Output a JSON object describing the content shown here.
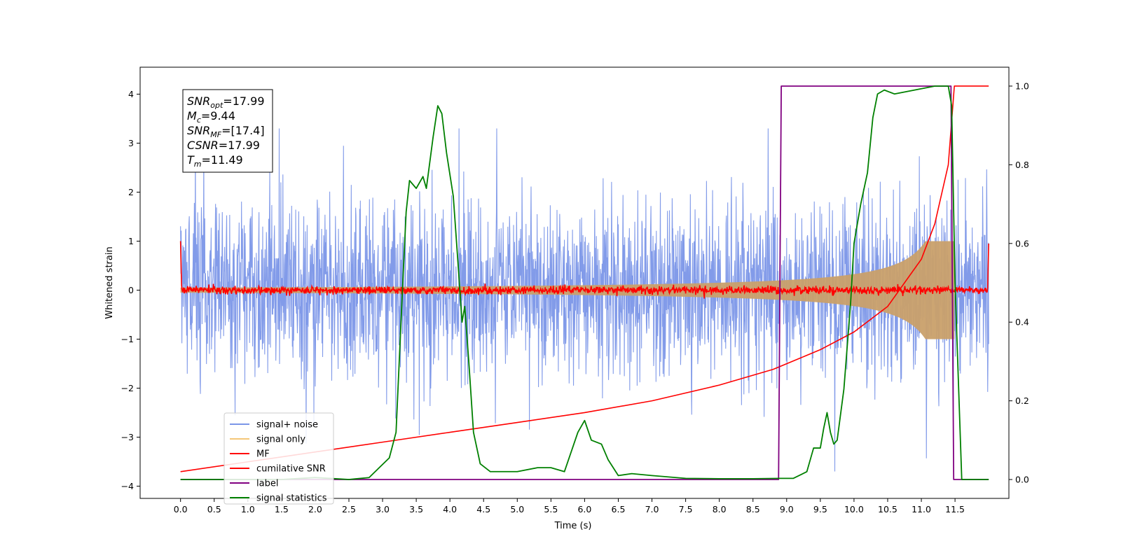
{
  "chart_data": {
    "type": "line",
    "title": "",
    "xlabel": "Time (s)",
    "ylabel": "Whitened strain",
    "xlim": [
      -0.6,
      12.3
    ],
    "ylim": [
      -4.25,
      4.55
    ],
    "y2lim": [
      -0.048,
      1.048
    ],
    "x_ticks": [
      "0.0",
      "0.5",
      "1.0",
      "1.5",
      "2.0",
      "2.5",
      "3.0",
      "3.5",
      "4.0",
      "4.5",
      "5.0",
      "5.5",
      "6.0",
      "6.5",
      "7.0",
      "7.5",
      "8.0",
      "8.5",
      "9.0",
      "9.5",
      "10.0",
      "10.5",
      "11.0",
      "11.5"
    ],
    "y_ticks": [
      "4",
      "3",
      "2",
      "1",
      "0",
      "−1",
      "−2",
      "−3",
      "−4"
    ],
    "y2_ticks": [
      "1.0",
      "0.8",
      "0.6",
      "0.4",
      "0.2",
      "0.0"
    ],
    "grid": false,
    "legend_position": "lower-left",
    "legend": [
      {
        "label": "signal+ noise",
        "color": "#7b96e8"
      },
      {
        "label": "signal only",
        "color": "#f5c778"
      },
      {
        "label": "MF",
        "color": "#ff0000"
      },
      {
        "label": "cumilative SNR",
        "color": "#ff0000"
      },
      {
        "label": "label",
        "color": "#800080"
      },
      {
        "label": "signal statistics",
        "color": "#008000"
      }
    ],
    "annotation": {
      "lines": [
        {
          "base": "SNR",
          "sub": "opt",
          "value": "=17.99"
        },
        {
          "base": "M",
          "sub": "c",
          "value": "=9.44"
        },
        {
          "base": "SNR",
          "sub": "MF",
          "value": "=[17.4]"
        },
        {
          "base": "CSNR",
          "sub": "",
          "value": "=17.99"
        },
        {
          "base": "T",
          "sub": "m",
          "value": "=11.49"
        }
      ]
    },
    "series": [
      {
        "name": "signal+ noise",
        "axis": "left",
        "t_range": [
          0.0,
          12.0
        ],
        "amplitude_range": [
          -3.7,
          3.3
        ],
        "color": "#7b96e8"
      },
      {
        "name": "signal only",
        "axis": "left",
        "t_range": [
          0.0,
          11.49
        ],
        "peak_amplitude": 1.0,
        "color": "#f5c778"
      },
      {
        "name": "MF",
        "axis": "left",
        "t_range": [
          0.0,
          12.0
        ],
        "color": "#ff0000"
      },
      {
        "name": "cumilative SNR",
        "axis": "right",
        "color": "#ff0000",
        "x": [
          0.0,
          1.0,
          2.0,
          3.0,
          4.0,
          5.0,
          6.0,
          7.0,
          8.0,
          8.8,
          9.5,
          10.0,
          10.5,
          11.0,
          11.2,
          11.4,
          11.49,
          12.0
        ],
        "y": [
          0.02,
          0.045,
          0.07,
          0.095,
          0.12,
          0.145,
          0.17,
          0.2,
          0.24,
          0.28,
          0.33,
          0.375,
          0.44,
          0.56,
          0.65,
          0.8,
          1.0,
          1.0
        ]
      },
      {
        "name": "label",
        "axis": "right",
        "color": "#800080",
        "x": [
          0.0,
          8.88,
          8.92,
          11.44,
          11.48,
          12.0
        ],
        "y": [
          0.0,
          0.0,
          1.0,
          1.0,
          0.0,
          0.0
        ]
      },
      {
        "name": "signal statistics",
        "axis": "right",
        "color": "#008000",
        "x": [
          0.0,
          0.5,
          1.0,
          1.5,
          2.0,
          2.5,
          2.8,
          2.95,
          3.1,
          3.2,
          3.3,
          3.35,
          3.4,
          3.5,
          3.6,
          3.65,
          3.75,
          3.82,
          3.88,
          3.95,
          4.05,
          4.12,
          4.18,
          4.22,
          4.28,
          4.35,
          4.45,
          4.6,
          5.0,
          5.3,
          5.5,
          5.7,
          5.9,
          6.0,
          6.1,
          6.25,
          6.35,
          6.5,
          6.7,
          7.0,
          7.5,
          8.0,
          8.5,
          8.9,
          9.1,
          9.3,
          9.4,
          9.5,
          9.55,
          9.6,
          9.65,
          9.7,
          9.75,
          9.85,
          9.95,
          10.0,
          10.1,
          10.2,
          10.28,
          10.35,
          10.45,
          10.6,
          10.9,
          11.2,
          11.4,
          11.45,
          11.5,
          11.6,
          11.7,
          12.0
        ],
        "y": [
          0.0,
          0.0,
          0.0,
          0.0,
          0.005,
          0.0,
          0.005,
          0.03,
          0.055,
          0.12,
          0.5,
          0.68,
          0.76,
          0.74,
          0.77,
          0.74,
          0.87,
          0.95,
          0.93,
          0.83,
          0.72,
          0.55,
          0.4,
          0.44,
          0.3,
          0.12,
          0.04,
          0.02,
          0.02,
          0.03,
          0.03,
          0.02,
          0.12,
          0.15,
          0.1,
          0.09,
          0.05,
          0.01,
          0.015,
          0.01,
          0.003,
          0.002,
          0.002,
          0.003,
          0.003,
          0.02,
          0.08,
          0.08,
          0.13,
          0.17,
          0.12,
          0.09,
          0.1,
          0.23,
          0.45,
          0.6,
          0.7,
          0.78,
          0.92,
          0.98,
          0.99,
          0.98,
          0.99,
          1.0,
          1.0,
          0.95,
          0.5,
          0.0,
          0.0,
          0.0
        ]
      }
    ]
  }
}
